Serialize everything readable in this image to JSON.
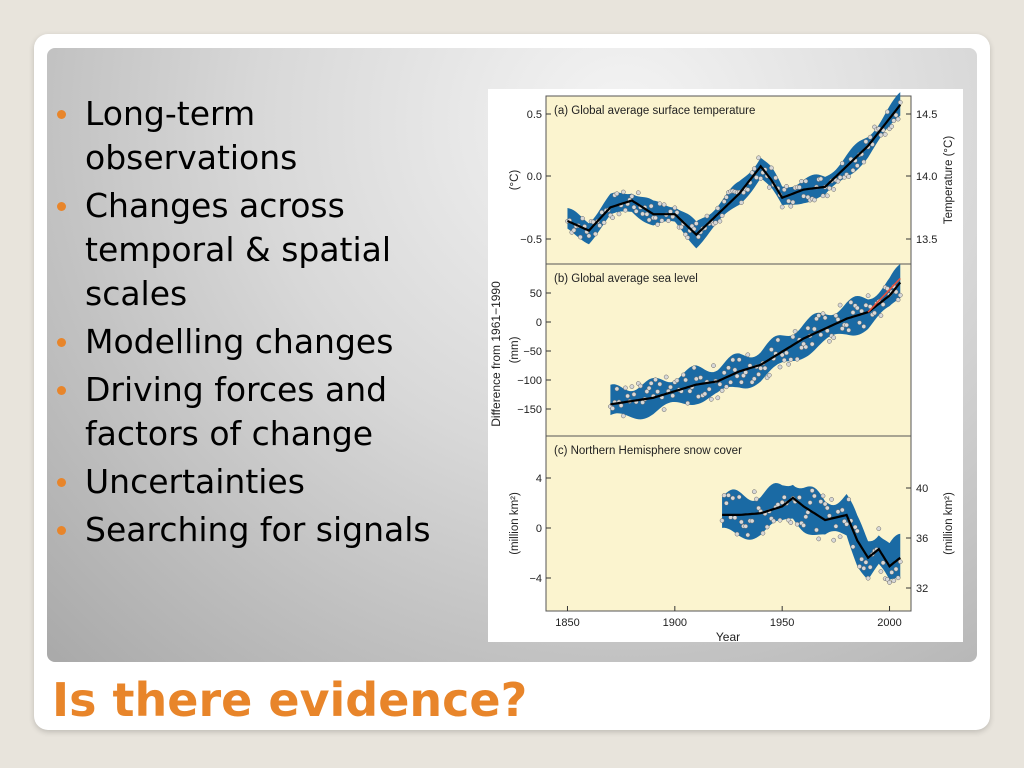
{
  "slide": {
    "title": "Is there evidence?",
    "accent_color": "#e8852a",
    "bullets": [
      "Long-term observations",
      "Changes across temporal & spatial scales",
      "Modelling changes",
      "Driving forces and factors of change",
      "Uncertainties",
      "Searching for signals"
    ]
  },
  "chart_data": [
    {
      "type": "line",
      "title": "(a) Global average surface temperature",
      "ylabel": "(°C)",
      "ylabel_right": "Temperature (°C)",
      "ylim": [
        -0.65,
        0.55
      ],
      "yticks": [
        "0.5",
        "0.0",
        "−0.5"
      ],
      "yticks_right": [
        "14.5",
        "14.0",
        "13.5"
      ],
      "x": [
        1850,
        1860,
        1870,
        1880,
        1890,
        1900,
        1910,
        1920,
        1930,
        1940,
        1945,
        1950,
        1960,
        1970,
        1980,
        1990,
        2000,
        2005
      ],
      "values": [
        -0.35,
        -0.42,
        -0.25,
        -0.2,
        -0.3,
        -0.3,
        -0.45,
        -0.3,
        -0.15,
        0.05,
        -0.05,
        -0.18,
        -0.12,
        -0.1,
        0.05,
        0.2,
        0.4,
        0.5
      ],
      "band": 0.1
    },
    {
      "type": "line",
      "title": "(b) Global average sea level",
      "ylabel": "(mm)",
      "ylim": [
        -175,
        80
      ],
      "yticks": [
        "50",
        "0",
        "−50",
        "−100",
        "−150"
      ],
      "x": [
        1870,
        1880,
        1890,
        1900,
        1910,
        1920,
        1930,
        1940,
        1950,
        1960,
        1970,
        1980,
        1990,
        2000,
        2005
      ],
      "values": [
        -130,
        -125,
        -120,
        -110,
        -100,
        -95,
        -80,
        -70,
        -50,
        -30,
        -15,
        0,
        10,
        35,
        55
      ],
      "band": 30
    },
    {
      "type": "line",
      "title": "(c) Northern Hemisphere snow cover",
      "ylabel": "(million km²)",
      "ylabel_right": "(million km²)",
      "ylim": [
        -5,
        5
      ],
      "yticks": [
        "4",
        "0",
        "−4"
      ],
      "yticks_right": [
        "40",
        "36",
        "32"
      ],
      "x": [
        1922,
        1930,
        1940,
        1950,
        1955,
        1960,
        1970,
        1980,
        1985,
        1990,
        1995,
        2000,
        2005
      ],
      "values": [
        0.5,
        0.5,
        0.6,
        1.0,
        1.5,
        1.0,
        0.2,
        0.5,
        -1.0,
        -2.0,
        -1.5,
        -2.5,
        -2.0
      ],
      "band": 1.5
    }
  ],
  "shared_axis": {
    "xlabel": "Year",
    "xticks": [
      "1850",
      "1900",
      "1950",
      "2000"
    ],
    "xtick_values": [
      1850,
      1900,
      1950,
      2000
    ],
    "xlim": [
      1840,
      2010
    ],
    "shared_ylabel": "Difference from 1961−1990"
  },
  "colors": {
    "panel_bg": "#fbf4cf",
    "band": "#1a6aa4",
    "line": "#000000",
    "points": "#d8d8d8",
    "recent": "#e8503a"
  }
}
